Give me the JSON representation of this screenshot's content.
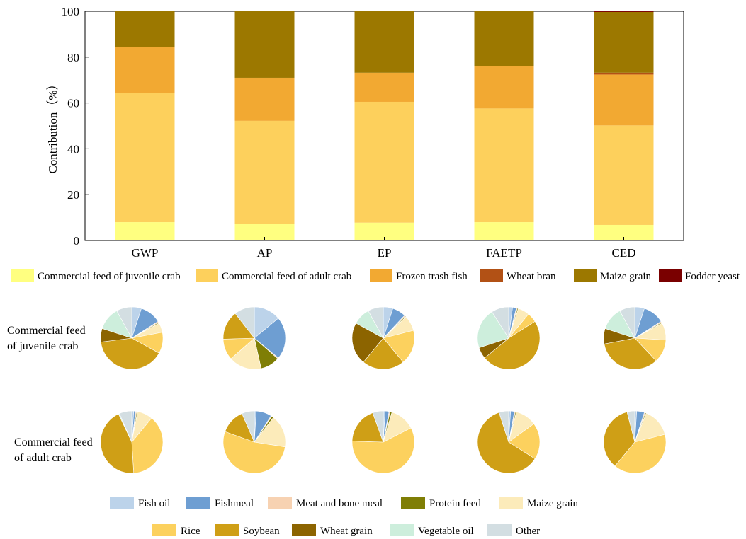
{
  "chart_data": [
    {
      "type": "bar",
      "stacked": true,
      "categories": [
        "GWP",
        "AP",
        "EP",
        "FAETP",
        "CED"
      ],
      "ylabel": "Contribution（%）",
      "ylim": [
        0,
        100
      ],
      "yticks": [
        0,
        20,
        40,
        60,
        80,
        100
      ],
      "grid": false,
      "legend_position": "bottom",
      "series": [
        {
          "name": "Commercial feed of juvenile crab",
          "color": "#FFFF80",
          "values": [
            8.0,
            7.2,
            7.8,
            8.0,
            6.8
          ]
        },
        {
          "name": "Commercial feed of adult crab",
          "color": "#FDD05C",
          "values": [
            56.3,
            45.0,
            52.7,
            49.6,
            43.4
          ]
        },
        {
          "name": "Frozen trash fish",
          "color": "#F2A932",
          "values": [
            20.2,
            18.8,
            12.7,
            18.4,
            22.2
          ]
        },
        {
          "name": "Wheat bran",
          "color": "#B25115",
          "values": [
            0.0,
            0.0,
            0.0,
            0.0,
            0.8
          ]
        },
        {
          "name": "Maize grain",
          "color": "#9C7800",
          "values": [
            15.5,
            29.0,
            26.8,
            24.0,
            26.5
          ]
        },
        {
          "name": "Fodder yeast",
          "color": "#7A0000",
          "values": [
            0.0,
            0.0,
            0.0,
            0.0,
            0.3
          ]
        }
      ]
    },
    {
      "type": "pie",
      "row_label": "Commercial feed of juvenile crab",
      "categories": [
        "GWP",
        "AP",
        "EP",
        "FAETP",
        "CED"
      ],
      "slice_order": [
        "Fish oil",
        "Fishmeal",
        "Meat and bone meal",
        "Protein feed",
        "Maize grain",
        "Rice",
        "Soybean",
        "Wheat grain",
        "Vegetable oil",
        "Other"
      ],
      "pies": [
        {
          "values": [
            5,
            11,
            0.5,
            0.5,
            5,
            11,
            40,
            7,
            12,
            8
          ]
        },
        {
          "values": [
            14,
            22,
            0.5,
            10,
            17,
            11,
            15,
            0,
            0,
            10.5
          ]
        },
        {
          "values": [
            5,
            7,
            0.5,
            0.5,
            8,
            18,
            22,
            22,
            9,
            8
          ]
        },
        {
          "values": [
            2,
            2,
            0.5,
            0.5,
            6,
            5,
            48,
            6,
            21,
            9
          ]
        },
        {
          "values": [
            5,
            11,
            0.5,
            0.5,
            9,
            12,
            34,
            8,
            12,
            8
          ]
        }
      ]
    },
    {
      "type": "pie",
      "row_label": "Commercial feed of adult crab",
      "categories": [
        "GWP",
        "AP",
        "EP",
        "FAETP",
        "CED"
      ],
      "slice_order": [
        "Fish oil",
        "Fishmeal",
        "Meat and bone meal",
        "Protein feed",
        "Maize grain",
        "Rice",
        "Soybean",
        "Wheat grain",
        "Vegetable oil",
        "Other"
      ],
      "pies": [
        {
          "values": [
            1,
            1,
            0.5,
            0.5,
            8,
            38,
            44,
            0,
            0.5,
            6.5
          ]
        },
        {
          "values": [
            1,
            8,
            0.5,
            1,
            17,
            53,
            13,
            0,
            0,
            6.5
          ]
        },
        {
          "values": [
            1,
            2,
            0.5,
            1,
            13,
            58,
            19,
            0,
            0,
            5.5
          ]
        },
        {
          "values": [
            1,
            2,
            0.5,
            0.5,
            11,
            19,
            61,
            0,
            0,
            5
          ]
        },
        {
          "values": [
            1,
            4,
            0.5,
            0.5,
            15,
            40,
            35,
            0,
            0,
            4
          ]
        }
      ]
    }
  ],
  "pie_legend": [
    {
      "name": "Fish oil",
      "color": "#BCD3EA"
    },
    {
      "name": "Fishmeal",
      "color": "#6E9ED2"
    },
    {
      "name": "Meat and bone meal",
      "color": "#F7D2B2"
    },
    {
      "name": "Protein feed",
      "color": "#7F7E05"
    },
    {
      "name": "Maize grain",
      "color": "#FCEBBA"
    },
    {
      "name": "Rice",
      "color": "#FCD15E"
    },
    {
      "name": "Soybean",
      "color": "#CF9F16"
    },
    {
      "name": "Wheat grain",
      "color": "#8C6400"
    },
    {
      "name": "Vegetable oil",
      "color": "#CDEEDC"
    },
    {
      "name": "Other",
      "color": "#D3DEE2"
    }
  ],
  "row_labels": {
    "juvenile": [
      "Commercial feed",
      "of juvenile crab"
    ],
    "adult": [
      "Commercial feed",
      "of adult crab"
    ]
  }
}
